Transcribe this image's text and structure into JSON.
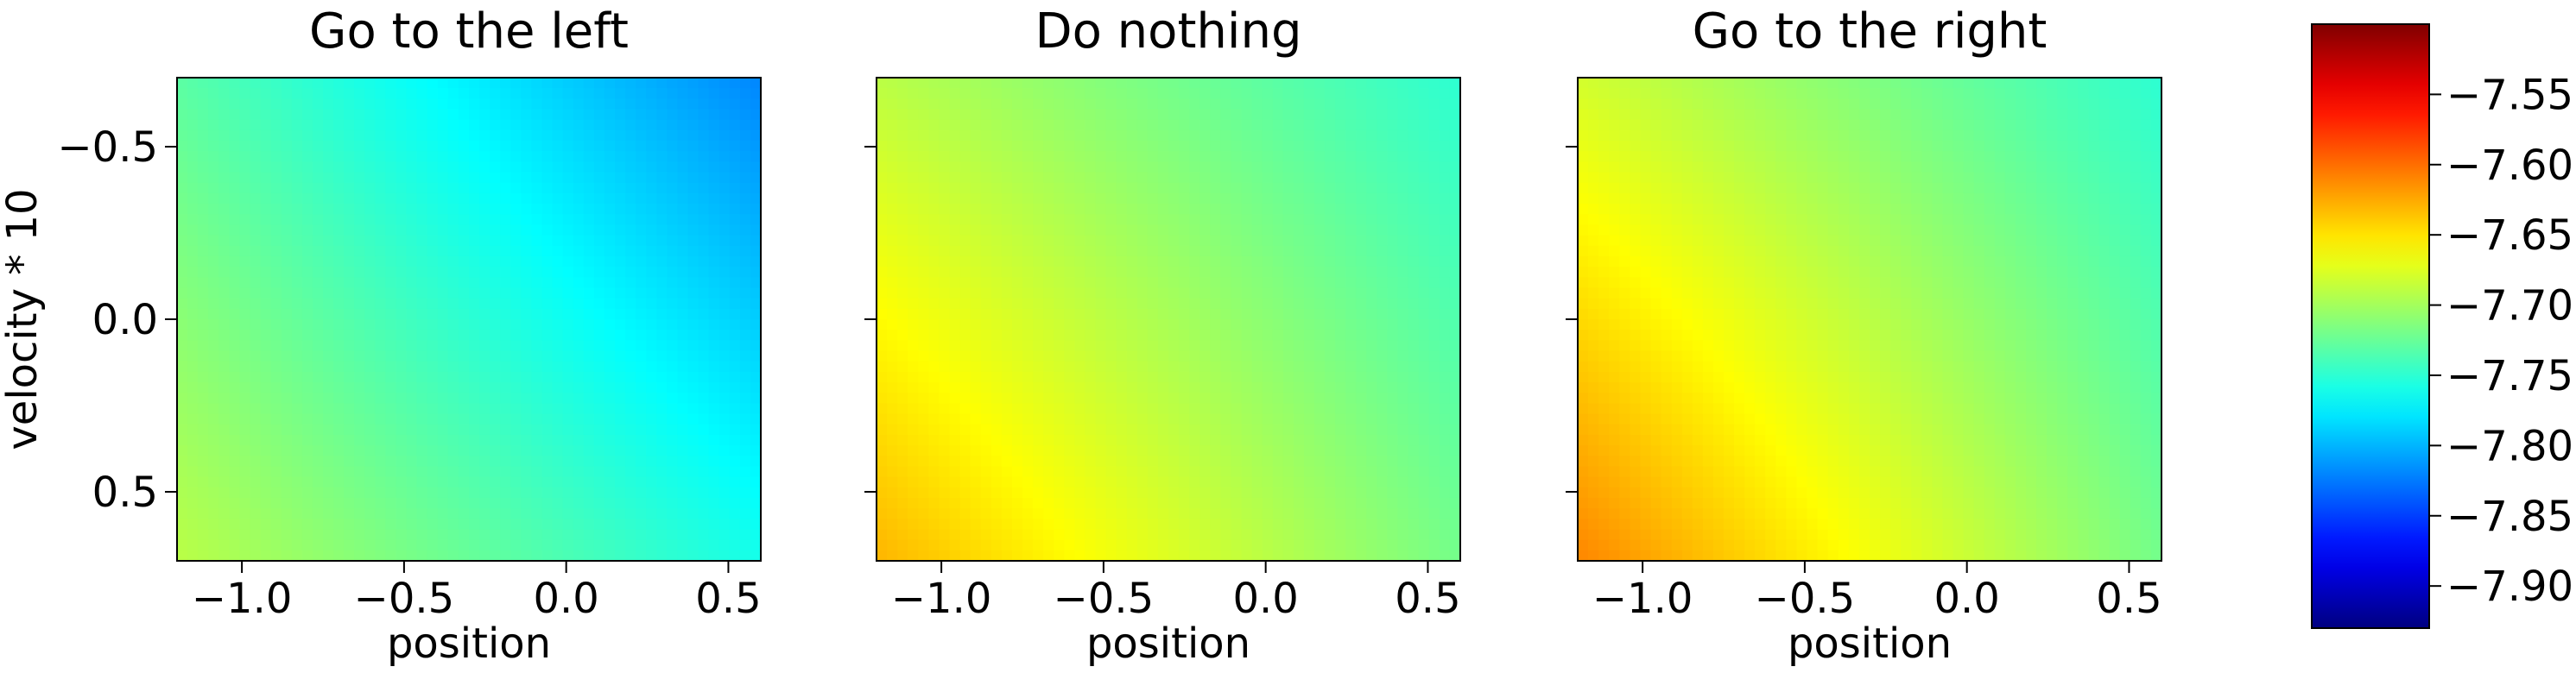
{
  "chart_data": {
    "type": "heatmap",
    "colormap": "jet",
    "grid": false,
    "color_limits": [
      -7.93,
      -7.5
    ],
    "panels": [
      {
        "title": "Go to the left",
        "xlabel": "position",
        "ylabel": "velocity * 10",
        "xlim": [
          -1.2,
          0.6
        ],
        "ylim": [
          0.7,
          -0.7
        ],
        "xticks": [
          -1.0,
          -0.5,
          0.0,
          0.5
        ],
        "xtick_labels": [
          "−1.0",
          "−0.5",
          "0.0",
          "0.5"
        ],
        "yticks": [
          -0.5,
          0.0,
          0.5
        ],
        "ytick_labels": [
          "−0.5",
          "0.0",
          "0.5"
        ],
        "corner_values": {
          "top_left": -7.73,
          "top_right": -7.82,
          "bottom_left": -7.69,
          "bottom_right": -7.76
        }
      },
      {
        "title": "Do nothing",
        "xlabel": "position",
        "ylabel": "",
        "xlim": [
          -1.2,
          0.6
        ],
        "ylim": [
          0.7,
          -0.7
        ],
        "xticks": [
          -1.0,
          -0.5,
          0.0,
          0.5
        ],
        "xtick_labels": [
          "−1.0",
          "−0.5",
          "0.0",
          "0.5"
        ],
        "yticks": [
          -0.5,
          0.0,
          0.5
        ],
        "ytick_labels": [],
        "corner_values": {
          "top_left": -7.69,
          "top_right": -7.75,
          "bottom_left": -7.63,
          "bottom_right": -7.72
        }
      },
      {
        "title": "Go to the right",
        "xlabel": "position",
        "ylabel": "",
        "xlim": [
          -1.2,
          0.6
        ],
        "ylim": [
          0.7,
          -0.7
        ],
        "xticks": [
          -1.0,
          -0.5,
          0.0,
          0.5
        ],
        "xtick_labels": [
          "−1.0",
          "−0.5",
          "0.0",
          "0.5"
        ],
        "yticks": [
          -0.5,
          0.0,
          0.5
        ],
        "ytick_labels": [],
        "corner_values": {
          "top_left": -7.68,
          "top_right": -7.75,
          "bottom_left": -7.61,
          "bottom_right": -7.72
        }
      }
    ],
    "colorbar": {
      "range": [
        -7.93,
        -7.5
      ],
      "ticks": [
        -7.55,
        -7.6,
        -7.65,
        -7.7,
        -7.75,
        -7.8,
        -7.85,
        -7.9
      ],
      "tick_labels": [
        "−7.55",
        "−7.60",
        "−7.65",
        "−7.70",
        "−7.75",
        "−7.80",
        "−7.85",
        "−7.90"
      ]
    }
  }
}
